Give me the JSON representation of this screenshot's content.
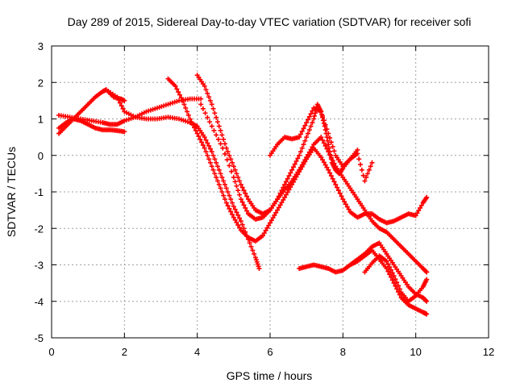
{
  "chart_data": {
    "type": "scatter",
    "title": "Day 289 of 2015, Sidereal Day-to-day VTEC variation (SDTVAR) for receiver sofi",
    "xlabel": "GPS time / hours",
    "ylabel": "SDTVAR / TECUs",
    "xlim": [
      0,
      12
    ],
    "ylim": [
      -5,
      3
    ],
    "xticks": [
      "0",
      "2",
      "4",
      "6",
      "8",
      "10",
      "12"
    ],
    "yticks": [
      "-5",
      "-4",
      "-3",
      "-2",
      "-1",
      "0",
      "1",
      "2",
      "3"
    ],
    "grid": true,
    "marker": "plus",
    "series_color": "#ff0000",
    "series": [
      {
        "x": [
          0.2,
          0.4,
          0.6,
          0.8,
          1.0,
          1.2,
          1.4,
          1.5,
          1.7,
          1.9,
          2.0
        ],
        "y": [
          0.6,
          0.8,
          1.0,
          1.2,
          1.4,
          1.6,
          1.75,
          1.8,
          1.6,
          1.55,
          1.5
        ]
      },
      {
        "x": [
          0.2,
          0.4,
          0.6,
          0.8,
          1.0,
          1.2,
          1.4,
          1.6,
          1.8,
          2.0
        ],
        "y": [
          0.75,
          0.9,
          1.0,
          0.95,
          0.85,
          0.75,
          0.7,
          0.7,
          0.68,
          0.65
        ]
      },
      {
        "x": [
          0.2,
          0.5,
          0.8,
          1.1,
          1.4,
          1.6,
          1.8,
          2.0,
          2.3,
          2.6,
          2.9,
          3.2,
          3.5,
          3.8,
          4.1
        ],
        "y": [
          1.1,
          1.05,
          1.0,
          0.95,
          0.9,
          0.85,
          0.85,
          0.95,
          1.05,
          1.2,
          1.3,
          1.4,
          1.5,
          1.55,
          1.55
        ]
      },
      {
        "x": [
          4.1,
          4.4,
          4.7,
          5.0,
          5.2,
          5.4,
          5.6,
          5.8,
          6.0,
          6.2,
          6.4,
          6.6,
          6.8,
          7.0,
          7.2,
          7.4,
          7.6,
          7.8,
          8.0,
          8.2,
          8.4,
          8.6,
          8.8,
          9.0,
          9.2,
          9.4,
          9.6,
          9.8,
          10.0,
          10.2,
          10.3
        ],
        "y": [
          1.4,
          0.8,
          0.2,
          -0.6,
          -1.2,
          -1.6,
          -1.75,
          -1.7,
          -1.5,
          -1.2,
          -0.95,
          -0.7,
          -0.4,
          -0.05,
          0.3,
          0.5,
          0.1,
          -0.3,
          -0.6,
          -0.9,
          -1.2,
          -1.5,
          -1.8,
          -2.0,
          -2.1,
          -2.3,
          -2.5,
          -2.7,
          -2.9,
          -3.1,
          -3.2
        ]
      },
      {
        "x": [
          1.5,
          1.8,
          2.0,
          2.3,
          2.6,
          2.9,
          3.2,
          3.5,
          3.8,
          4.0,
          4.2,
          4.4,
          4.6,
          4.8,
          5.0,
          5.2,
          5.4,
          5.6,
          5.7
        ],
        "y": [
          1.8,
          1.6,
          1.2,
          1.05,
          1.0,
          1.0,
          1.05,
          1.0,
          0.9,
          0.8,
          0.5,
          0.1,
          -0.4,
          -0.9,
          -1.4,
          -1.8,
          -2.3,
          -2.8,
          -3.1
        ]
      },
      {
        "x": [
          3.2,
          3.4,
          3.6,
          3.8,
          4.0,
          4.2,
          4.4,
          4.6,
          4.8,
          5.0,
          5.2,
          5.4,
          5.6,
          5.8,
          6.0,
          6.2,
          6.4,
          6.6,
          6.8,
          7.0,
          7.2,
          7.4,
          7.6,
          7.8,
          8.0,
          8.2,
          8.4,
          8.6,
          8.8,
          9.0,
          9.2,
          9.4,
          9.6,
          9.8,
          10.0,
          10.2,
          10.3
        ],
        "y": [
          2.1,
          1.9,
          1.5,
          1.0,
          0.6,
          0.2,
          -0.3,
          -0.8,
          -1.3,
          -1.7,
          -2.05,
          -2.25,
          -2.35,
          -2.2,
          -1.85,
          -1.5,
          -1.15,
          -0.8,
          -0.45,
          -0.1,
          0.2,
          -0.05,
          -0.4,
          -0.8,
          -1.2,
          -1.55,
          -1.7,
          -1.6,
          -1.6,
          -1.75,
          -1.85,
          -1.8,
          -1.7,
          -1.6,
          -1.65,
          -1.3,
          -1.15
        ]
      },
      {
        "x": [
          4.0,
          4.2,
          4.4,
          4.6,
          4.8,
          5.0,
          5.2,
          5.4,
          5.6,
          5.8,
          6.0,
          6.2,
          6.4,
          6.6,
          6.8,
          7.0,
          7.2,
          7.3,
          7.4,
          7.5,
          7.6,
          7.7,
          7.8,
          7.9,
          8.0,
          8.2,
          8.4
        ],
        "y": [
          2.2,
          1.9,
          1.4,
          0.8,
          0.2,
          -0.3,
          -0.8,
          -1.2,
          -1.5,
          -1.6,
          -1.5,
          -1.2,
          -0.8,
          -0.4,
          0.0,
          0.5,
          1.0,
          1.4,
          1.2,
          0.8,
          0.3,
          -0.2,
          -0.4,
          -0.5,
          -0.35,
          -0.1,
          0.15
        ]
      },
      {
        "x": [
          6.0,
          6.2,
          6.4,
          6.6,
          6.8,
          7.0,
          7.2,
          7.4,
          7.6,
          7.8,
          8.0,
          8.2,
          8.4,
          8.6,
          8.8
        ],
        "y": [
          0.0,
          0.3,
          0.5,
          0.45,
          0.5,
          0.9,
          1.3,
          1.2,
          0.6,
          0.0,
          -0.3,
          -0.1,
          0.05,
          -0.7,
          -0.2
        ]
      },
      {
        "x": [
          6.8,
          7.0,
          7.2,
          7.4,
          7.6,
          7.8,
          8.0,
          8.2,
          8.4,
          8.6,
          8.8,
          9.0,
          9.2,
          9.4,
          9.6,
          9.8,
          10.0,
          10.2,
          10.3
        ],
        "y": [
          -3.1,
          -3.05,
          -3.0,
          -3.05,
          -3.1,
          -3.2,
          -3.15,
          -3.0,
          -2.85,
          -2.7,
          -2.5,
          -2.4,
          -2.7,
          -3.0,
          -3.3,
          -3.6,
          -3.8,
          -3.9,
          -4.0
        ]
      },
      {
        "x": [
          8.2,
          8.4,
          8.6,
          8.8,
          9.0,
          9.2,
          9.4,
          9.6,
          9.8,
          10.0,
          10.2,
          10.3
        ],
        "y": [
          -3.0,
          -2.9,
          -2.75,
          -2.6,
          -2.85,
          -3.1,
          -3.5,
          -3.9,
          -4.1,
          -4.2,
          -4.3,
          -4.35
        ]
      },
      {
        "x": [
          8.6,
          8.8,
          9.0,
          9.2,
          9.4,
          9.6,
          9.8,
          10.0,
          10.2,
          10.3
        ],
        "y": [
          -3.2,
          -2.95,
          -2.75,
          -2.9,
          -3.3,
          -3.75,
          -4.0,
          -3.85,
          -3.6,
          -3.4
        ]
      }
    ]
  }
}
